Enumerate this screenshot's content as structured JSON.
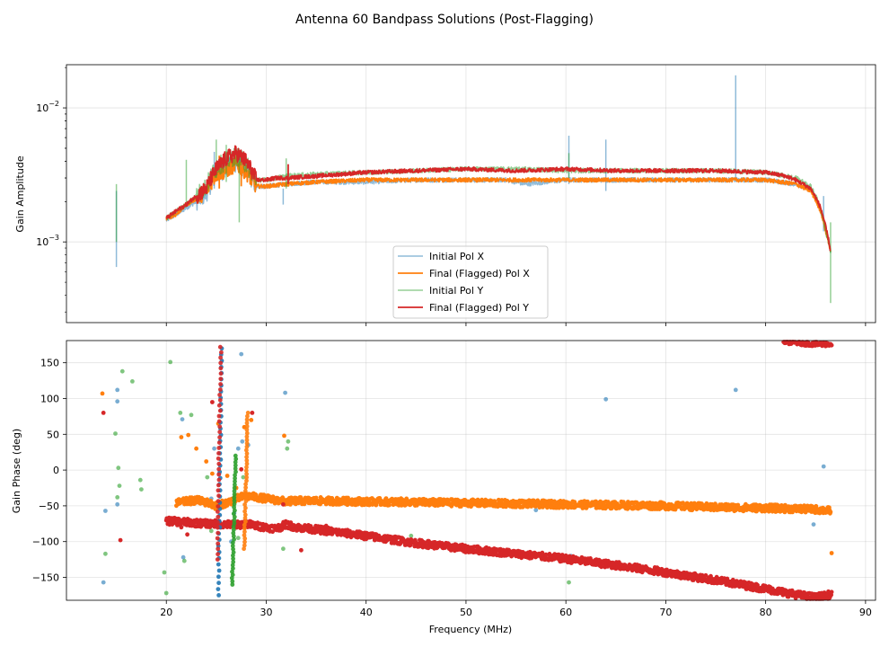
{
  "chart_data": {
    "type": "line",
    "title": "Antenna 60 Bandpass Solutions (Post-Flagging)",
    "xlabel": "Frequency (MHz)",
    "x_ticks": [
      20,
      30,
      40,
      50,
      60,
      70,
      80,
      90
    ],
    "xlim": [
      10,
      91
    ],
    "colors": {
      "init_x": "#1f77b4",
      "final_x": "#ff7f0e",
      "init_y": "#2ca02c",
      "final_y": "#d62728"
    },
    "panels": [
      {
        "name": "amplitude",
        "ylabel": "Gain Amplitude",
        "yscale": "log",
        "ylim": [
          0.00025,
          0.021
        ],
        "y_ticks": [
          0.001,
          0.01
        ],
        "y_tick_base": "10",
        "y_tick_exponents": [
          "−3",
          "−2"
        ],
        "legend": [
          "Initial Pol X",
          "Final (Flagged) Pol X",
          "Initial Pol Y",
          "Final (Flagged) Pol Y"
        ],
        "legend_position": "lower center",
        "series": [
          {
            "name": "Initial Pol X",
            "key": "init_x",
            "x": [
              20,
              21,
              22,
              23,
              24,
              25,
              26,
              27,
              28,
              29,
              30,
              32,
              35,
              40,
              45,
              50,
              54,
              56,
              58,
              60,
              62,
              65,
              70,
              75,
              80,
              83,
              84.5,
              85.5,
              86,
              86.5
            ],
            "y": [
              0.00145,
              0.0016,
              0.0018,
              0.002,
              0.0023,
              0.0032,
              0.0035,
              0.0039,
              0.0034,
              0.0026,
              0.0026,
              0.0027,
              0.0028,
              0.0028,
              0.0029,
              0.0029,
              0.0029,
              0.0027,
              0.0028,
              0.0029,
              0.0029,
              0.0029,
              0.0029,
              0.0029,
              0.0029,
              0.0027,
              0.0025,
              0.0017,
              0.0012,
              0.00085
            ],
            "spikes": [
              [
                15,
                0.00065,
                0.0024
              ],
              [
                24.8,
                0.0025,
                0.0047
              ],
              [
                31.7,
                0.0019,
                0.0025
              ],
              [
                60.3,
                0.0027,
                0.0062
              ],
              [
                64,
                0.0024,
                0.0058
              ],
              [
                77,
                0.0029,
                0.0175
              ],
              [
                85.8,
                0.0012,
                0.0022
              ]
            ]
          },
          {
            "name": "Final (Flagged) Pol X",
            "key": "final_x",
            "x": [
              20,
              21,
              22,
              23,
              24,
              25,
              26,
              27,
              28,
              29,
              30,
              32,
              35,
              40,
              45,
              50,
              55,
              60,
              65,
              70,
              75,
              80,
              83,
              84.5,
              85.5,
              86,
              86.5
            ],
            "y": [
              0.0015,
              0.0016,
              0.0019,
              0.0021,
              0.0024,
              0.0032,
              0.0034,
              0.0038,
              0.0033,
              0.0026,
              0.0026,
              0.0027,
              0.0028,
              0.0029,
              0.0029,
              0.0029,
              0.0029,
              0.0029,
              0.0029,
              0.0029,
              0.0029,
              0.0029,
              0.0027,
              0.0024,
              0.0017,
              0.0012,
              0.00085
            ],
            "spikes": [
              [
                25.3,
                0.0025,
                0.0044
              ],
              [
                27.5,
                0.0026,
                0.0045
              ]
            ]
          },
          {
            "name": "Initial Pol Y",
            "key": "init_y",
            "x": [
              20,
              21,
              22,
              23,
              24,
              25,
              26,
              27,
              28,
              29,
              30,
              32,
              35,
              40,
              45,
              50,
              55,
              60,
              65,
              70,
              75,
              80,
              83,
              84.5,
              85.5,
              86,
              86.5
            ],
            "y": [
              0.0015,
              0.0017,
              0.0019,
              0.0022,
              0.0026,
              0.0036,
              0.004,
              0.0044,
              0.0038,
              0.0029,
              0.0029,
              0.0031,
              0.0032,
              0.0033,
              0.0034,
              0.0035,
              0.0035,
              0.0034,
              0.0034,
              0.0034,
              0.0034,
              0.0033,
              0.003,
              0.0026,
              0.0018,
              0.0012,
              0.00085
            ],
            "spikes": [
              [
                15,
                0.001,
                0.0027
              ],
              [
                22,
                0.0019,
                0.0041
              ],
              [
                25,
                0.003,
                0.0058
              ],
              [
                26,
                0.0028,
                0.0053
              ],
              [
                27.3,
                0.0014,
                0.0043
              ],
              [
                32,
                0.0025,
                0.0042
              ],
              [
                60.3,
                0.003,
                0.0046
              ],
              [
                86.5,
                0.00035,
                0.0014
              ]
            ]
          },
          {
            "name": "Final (Flagged) Pol Y",
            "key": "final_y",
            "x": [
              20,
              21,
              22,
              23,
              24,
              25,
              26,
              27,
              28,
              29,
              30,
              31,
              32,
              35,
              40,
              45,
              50,
              55,
              60,
              65,
              70,
              75,
              80,
              82,
              83,
              84.5,
              85.5,
              86,
              86.5
            ],
            "y": [
              0.0015,
              0.0017,
              0.0019,
              0.0022,
              0.0025,
              0.0035,
              0.0042,
              0.0046,
              0.004,
              0.0029,
              0.0029,
              0.003,
              0.003,
              0.0031,
              0.0033,
              0.0034,
              0.0035,
              0.0034,
              0.0035,
              0.0034,
              0.0034,
              0.0034,
              0.0033,
              0.0031,
              0.0029,
              0.0025,
              0.0018,
              0.0013,
              0.00085
            ],
            "spikes": [
              [
                32.2,
                0.0027,
                0.0038
              ]
            ]
          }
        ]
      },
      {
        "name": "phase",
        "ylabel": "Gain Phase (deg)",
        "yscale": "linear",
        "ylim": [
          -182,
          181
        ],
        "y_ticks": [
          -150,
          -100,
          -50,
          0,
          50,
          100,
          150
        ],
        "y_tick_labels": [
          "−150",
          "−100",
          "−50",
          "0",
          "50",
          "100",
          "150"
        ],
        "series": [
          {
            "name": "Initial Pol X",
            "key": "init_x",
            "points": [
              [
                13.7,
                -157
              ],
              [
                13.9,
                -57
              ],
              [
                15.1,
                -48
              ],
              [
                15.1,
                112
              ],
              [
                15.1,
                96
              ],
              [
                21.6,
                71
              ],
              [
                21.7,
                -122
              ],
              [
                24.5,
                -40
              ],
              [
                24.8,
                30
              ],
              [
                25.3,
                -5
              ],
              [
                26.5,
                -100
              ],
              [
                26.8,
                -60
              ],
              [
                27.2,
                30
              ],
              [
                27.6,
                40
              ],
              [
                28.2,
                35
              ],
              [
                31.9,
                108
              ],
              [
                27.5,
                162
              ],
              [
                57,
                -56
              ],
              [
                57.5,
                -51
              ],
              [
                60.5,
                -120
              ],
              [
                64,
                99
              ],
              [
                77,
                112
              ],
              [
                84.8,
                -76
              ],
              [
                85.8,
                5
              ]
            ]
          },
          {
            "name": "Final (Flagged) Pol X",
            "key": "final_x",
            "band": {
              "x": [
                21,
                22,
                23,
                24,
                25,
                26,
                27,
                28,
                29,
                30,
                32,
                33,
                35,
                40,
                45,
                50,
                55,
                60,
                65,
                70,
                75,
                80,
                85,
                86.5
              ],
              "y": [
                -46,
                -44,
                -42,
                -45,
                -50,
                -46,
                -40,
                -36,
                -38,
                -40,
                -44,
                -43,
                -43,
                -44,
                -45,
                -46,
                -47,
                -48,
                -49,
                -50,
                -52,
                -53,
                -55,
                -57
              ]
            },
            "points": [
              [
                13.6,
                107
              ],
              [
                21.5,
                46
              ],
              [
                22.2,
                49
              ],
              [
                23,
                30
              ],
              [
                24,
                12
              ],
              [
                24.6,
                -5
              ],
              [
                25.2,
                65
              ],
              [
                26.1,
                -8
              ],
              [
                27,
                -25
              ],
              [
                27.8,
                60
              ],
              [
                28.5,
                70
              ],
              [
                31.8,
                48
              ],
              [
                32.6,
                -80
              ],
              [
                86.6,
                -116
              ]
            ]
          },
          {
            "name": "Initial Pol Y",
            "key": "init_y",
            "points": [
              [
                13.9,
                -117
              ],
              [
                14.9,
                51
              ],
              [
                15.2,
                3
              ],
              [
                15.3,
                -22
              ],
              [
                15.1,
                -38
              ],
              [
                15.6,
                138
              ],
              [
                16.6,
                124
              ],
              [
                17.4,
                -14
              ],
              [
                17.5,
                -27
              ],
              [
                19.8,
                -143
              ],
              [
                20,
                -172
              ],
              [
                20.4,
                151
              ],
              [
                21.4,
                80
              ],
              [
                21.8,
                -127
              ],
              [
                22.5,
                77
              ],
              [
                24.1,
                -10
              ],
              [
                24.5,
                -85
              ],
              [
                26.6,
                -48
              ],
              [
                27.2,
                -95
              ],
              [
                27.7,
                -10
              ],
              [
                31.7,
                -110
              ],
              [
                32.1,
                30
              ],
              [
                32.2,
                40
              ],
              [
                44.5,
                -92
              ],
              [
                60.3,
                -157
              ],
              [
                85.5,
                -178
              ]
            ]
          },
          {
            "name": "Final (Flagged) Pol Y",
            "key": "final_y",
            "band": {
              "x": [
                20,
                21,
                22,
                23,
                24,
                25,
                26,
                27,
                28,
                29,
                30,
                31,
                32,
                33,
                35,
                40,
                45,
                50,
                55,
                60,
                65,
                70,
                75,
                80,
                83,
                85,
                86.6
              ],
              "y": [
                -71,
                -72,
                -73,
                -74,
                -75,
                -75,
                -76,
                -77,
                -75,
                -78,
                -80,
                -82,
                -76,
                -80,
                -83,
                -92,
                -102,
                -110,
                -117,
                -124,
                -133,
                -143,
                -154,
                -166,
                -174,
                -178,
                -174
              ]
            },
            "upper": {
              "x": [
                81.8,
                83,
                84,
                85,
                86,
                86.6
              ],
              "y": [
                180,
                178,
                177,
                176,
                176,
                176
              ]
            },
            "points": [
              [
                13.7,
                80
              ],
              [
                15.4,
                -98
              ],
              [
                21.5,
                -80
              ],
              [
                22.1,
                -90
              ],
              [
                24.6,
                95
              ],
              [
                27.5,
                1
              ],
              [
                28.6,
                80
              ],
              [
                31.7,
                -48
              ],
              [
                33.5,
                -112
              ],
              [
                36,
                -78
              ]
            ]
          }
        ],
        "spikes": [
          {
            "key": "init_x",
            "x": 25.2,
            "y0": -175,
            "y1": 170
          },
          {
            "key": "final_y",
            "x": 25.1,
            "y0": -125,
            "y1": 172
          },
          {
            "key": "final_x",
            "x": 27.8,
            "y0": -110,
            "y1": 80
          },
          {
            "key": "init_y",
            "x": 26.6,
            "y0": -160,
            "y1": 20
          }
        ]
      }
    ]
  }
}
